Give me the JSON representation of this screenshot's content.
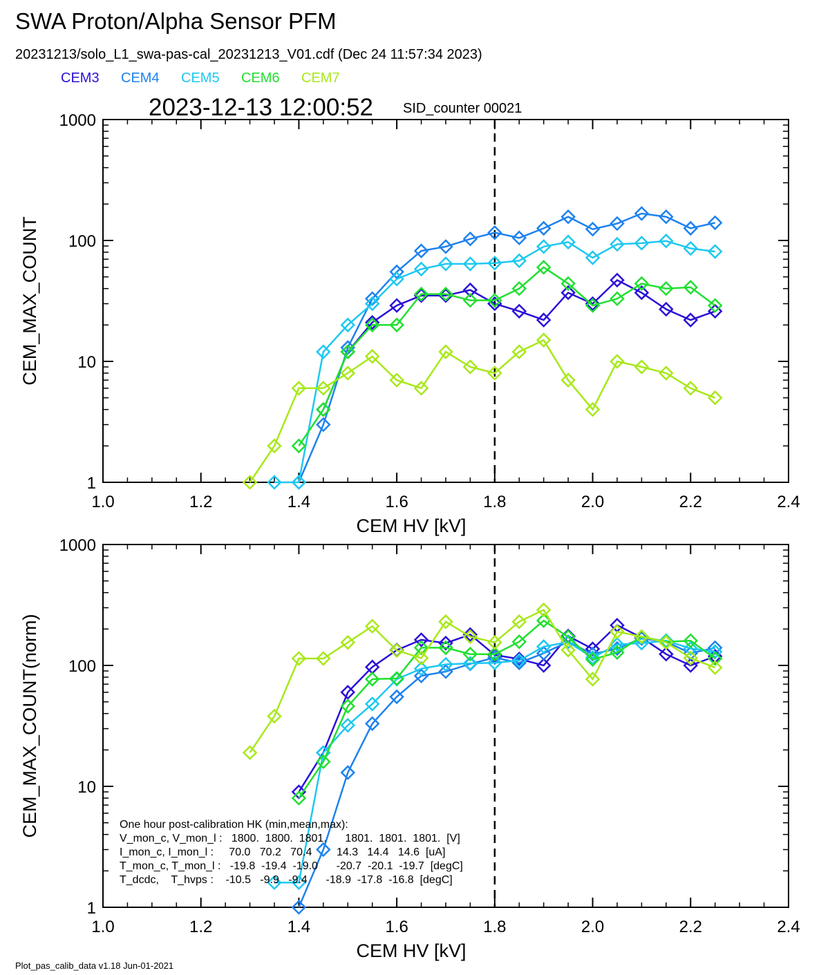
{
  "header": {
    "title": "SWA Proton/Alpha Sensor PFM",
    "file_line": "20231213/solo_L1_swa-pas-cal_20231213_V01.cdf  (Dec 24 11:57:34 2023)",
    "timestamp": "2023-12-13 12:00:52",
    "sid": "SID_counter 00021"
  },
  "legend": [
    {
      "name": "CEM3",
      "color": "#2a10d8"
    },
    {
      "name": "CEM4",
      "color": "#1e82ee"
    },
    {
      "name": "CEM5",
      "color": "#1ec8f0"
    },
    {
      "name": "CEM6",
      "color": "#20e030"
    },
    {
      "name": "CEM7",
      "color": "#a8e81a"
    }
  ],
  "footer": "Plot_pas_calib_data v1.18 Jun-01-2021",
  "hk_box": [
    "One hour post-calibration HK (min,mean,max):",
    "V_mon_c, V_mon_l :   1800.  1800.  1801.      1801.  1801.  1801.  [V]",
    "I_mon_c, I_mon_l :     70.0   70.2   70.4        14.3   14.4   14.6  [uA]",
    "T_mon_c, T_mon_l :   -19.8  -19.4  -19.0      -20.7  -20.1  -19.7  [degC]",
    "T_dcdc,    T_hvps :    -10.5   -9.9   -9.4      -18.9  -17.8  -16.8  [degC]"
  ],
  "chart_data": [
    {
      "type": "line",
      "ylabel": "CEM_MAX_COUNT",
      "xlabel": "CEM HV [kV]",
      "xlim": [
        1.0,
        2.4
      ],
      "ylim": [
        1,
        1000
      ],
      "yscale": "log",
      "xticks": [
        "1.0",
        "1.2",
        "1.4",
        "1.6",
        "1.8",
        "2.0",
        "2.2",
        "2.4"
      ],
      "yticks": [
        "1",
        "10",
        "100",
        "1000"
      ],
      "vline": 1.8,
      "marker": "diamond",
      "x": [
        1.3,
        1.35,
        1.4,
        1.45,
        1.5,
        1.55,
        1.6,
        1.65,
        1.7,
        1.75,
        1.8,
        1.85,
        1.9,
        1.95,
        2.0,
        2.05,
        2.1,
        2.15,
        2.2,
        2.25
      ],
      "series": [
        {
          "name": "CEM3",
          "values": [
            null,
            null,
            null,
            4,
            12,
            21,
            29,
            35,
            35,
            39,
            30,
            26,
            22,
            37,
            30,
            47,
            37,
            27,
            22,
            26
          ]
        },
        {
          "name": "CEM4",
          "values": [
            null,
            null,
            1,
            3,
            13,
            33,
            55,
            82,
            89,
            103,
            116,
            105,
            126,
            157,
            124,
            138,
            167,
            157,
            126,
            140
          ]
        },
        {
          "name": "CEM5",
          "values": [
            null,
            1,
            1,
            12,
            20,
            30,
            48,
            58,
            64,
            64,
            65,
            68,
            89,
            97,
            72,
            93,
            95,
            99,
            86,
            81
          ]
        },
        {
          "name": "CEM6",
          "values": [
            null,
            null,
            2,
            4,
            12,
            20,
            20,
            36,
            36,
            32,
            32,
            40,
            60,
            44,
            29,
            33,
            44,
            40,
            41,
            29
          ]
        },
        {
          "name": "CEM7",
          "values": [
            1,
            2,
            6,
            6,
            8,
            11,
            7,
            6,
            12,
            9,
            8,
            12,
            15,
            7,
            4,
            10,
            9,
            8,
            6,
            5
          ]
        }
      ]
    },
    {
      "type": "line",
      "ylabel": "CEM_MAX_COUNT(norm)",
      "xlabel": "CEM HV [kV]",
      "xlim": [
        1.0,
        2.4
      ],
      "ylim": [
        1,
        1000
      ],
      "yscale": "log",
      "xticks": [
        "1.0",
        "1.2",
        "1.4",
        "1.6",
        "1.8",
        "2.0",
        "2.2",
        "2.4"
      ],
      "yticks": [
        "1",
        "10",
        "100",
        "1000"
      ],
      "vline": 1.8,
      "marker": "diamond",
      "x": [
        1.3,
        1.35,
        1.4,
        1.45,
        1.5,
        1.55,
        1.6,
        1.65,
        1.7,
        1.75,
        1.8,
        1.85,
        1.9,
        1.95,
        2.0,
        2.05,
        2.1,
        2.15,
        2.2,
        2.25
      ],
      "series": [
        {
          "name": "CEM3",
          "values": [
            null,
            null,
            9,
            19,
            60,
            97,
            134,
            163,
            153,
            180,
            122,
            113,
            100,
            175,
            137,
            215,
            170,
            124,
            100,
            119
          ]
        },
        {
          "name": "CEM4",
          "values": [
            null,
            null,
            1,
            3,
            13,
            33,
            55,
            82,
            89,
            103,
            116,
            105,
            126,
            157,
            124,
            138,
            167,
            157,
            126,
            140
          ]
        },
        {
          "name": "CEM5",
          "values": [
            null,
            1.6,
            1.6,
            19,
            32,
            48,
            77,
            94,
            102,
            104,
            105,
            110,
            143,
            156,
            116,
            149,
            153,
            160,
            138,
            130
          ]
        },
        {
          "name": "CEM6",
          "values": [
            null,
            null,
            8,
            16,
            46,
            77,
            78,
            140,
            140,
            124,
            124,
            157,
            235,
            172,
            112,
            128,
            173,
            157,
            160,
            114
          ]
        },
        {
          "name": "CEM7",
          "values": [
            19,
            38,
            114,
            114,
            155,
            211,
            133,
            115,
            230,
            173,
            155,
            230,
            288,
            134,
            77,
            190,
            173,
            155,
            115,
            96
          ]
        }
      ]
    }
  ]
}
